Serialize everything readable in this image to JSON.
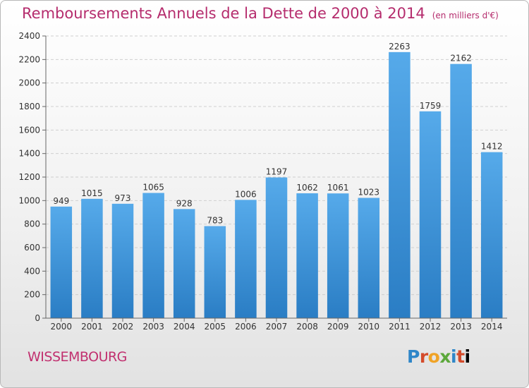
{
  "chart_data": {
    "type": "bar",
    "title": "Remboursements Annuels de la Dette de 2000 à 2014",
    "subtitle": "(en milliers d'€)",
    "categories": [
      "2000",
      "2001",
      "2002",
      "2003",
      "2004",
      "2005",
      "2006",
      "2007",
      "2008",
      "2009",
      "2010",
      "2011",
      "2012",
      "2013",
      "2014"
    ],
    "values": [
      949,
      1015,
      973,
      1065,
      928,
      783,
      1006,
      1197,
      1062,
      1061,
      1023,
      2263,
      1759,
      2162,
      1412
    ],
    "ylim": [
      0,
      2400
    ],
    "yticks": [
      0,
      200,
      400,
      600,
      800,
      1000,
      1200,
      1400,
      1600,
      1800,
      2000,
      2200,
      2400
    ],
    "grid": true,
    "bar_color": "#3a8fd6",
    "title_color": "#b52c6d"
  },
  "footer": {
    "place": "WISSEMBOURG",
    "logo_letters": [
      "P",
      "r",
      "o",
      "x",
      "i",
      "t",
      "i"
    ]
  }
}
